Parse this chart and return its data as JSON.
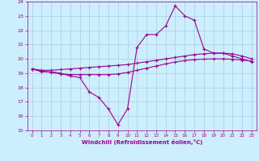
{
  "xlabel": "Windchill (Refroidissement éolien,°C)",
  "xlim": [
    -0.5,
    23.5
  ],
  "ylim": [
    15,
    24
  ],
  "yticks": [
    15,
    16,
    17,
    18,
    19,
    20,
    21,
    22,
    23,
    24
  ],
  "xticks": [
    0,
    1,
    2,
    3,
    4,
    5,
    6,
    7,
    8,
    9,
    10,
    11,
    12,
    13,
    14,
    15,
    16,
    17,
    18,
    19,
    20,
    21,
    22,
    23
  ],
  "bg_color": "#cceeff",
  "grid_color": "#aaccdd",
  "line_color": "#990099",
  "line1_x": [
    0,
    1,
    2,
    3,
    4,
    5,
    6,
    7,
    8,
    9,
    10,
    11,
    12,
    13,
    14,
    15,
    16,
    17,
    18,
    19,
    20,
    21,
    22,
    23
  ],
  "line1_y": [
    19.3,
    19.1,
    19.1,
    19.0,
    18.8,
    18.7,
    17.7,
    17.3,
    16.5,
    15.4,
    16.5,
    20.8,
    21.7,
    21.7,
    22.3,
    23.7,
    23.0,
    22.7,
    20.7,
    20.4,
    20.4,
    20.2,
    20.0,
    19.8
  ],
  "line2_x": [
    0,
    1,
    2,
    3,
    4,
    5,
    6,
    7,
    8,
    9,
    10,
    11,
    12,
    13,
    14,
    15,
    16,
    17,
    18,
    19,
    20,
    21,
    22,
    23
  ],
  "line2_y": [
    19.3,
    19.2,
    19.2,
    19.25,
    19.3,
    19.35,
    19.4,
    19.45,
    19.5,
    19.55,
    19.6,
    19.7,
    19.8,
    19.9,
    20.0,
    20.1,
    20.2,
    20.3,
    20.35,
    20.4,
    20.4,
    20.35,
    20.2,
    20.0
  ],
  "line3_x": [
    0,
    1,
    2,
    3,
    4,
    5,
    6,
    7,
    8,
    9,
    10,
    11,
    12,
    13,
    14,
    15,
    16,
    17,
    18,
    19,
    20,
    21,
    22,
    23
  ],
  "line3_y": [
    19.3,
    19.15,
    19.05,
    18.95,
    18.9,
    18.9,
    18.9,
    18.9,
    18.9,
    18.95,
    19.05,
    19.2,
    19.35,
    19.5,
    19.65,
    19.78,
    19.88,
    19.95,
    19.98,
    20.0,
    20.0,
    19.97,
    19.92,
    19.85
  ]
}
